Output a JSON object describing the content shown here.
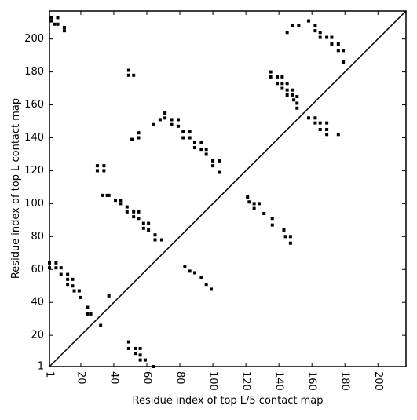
{
  "chart_data": {
    "type": "scatter",
    "xlabel": "Residue index of top L/5 contact map",
    "ylabel": "Residue index of top L contact map",
    "xlim": [
      1,
      217
    ],
    "ylim": [
      1,
      217
    ],
    "xticks": [
      1,
      20,
      40,
      60,
      80,
      100,
      120,
      140,
      160,
      180,
      200
    ],
    "yticks": [
      1,
      20,
      40,
      60,
      80,
      100,
      120,
      140,
      160,
      180,
      200
    ],
    "diagonal": true,
    "series": [
      {
        "color": "#000000",
        "x": [
          2,
          2,
          6,
          6,
          10,
          10,
          4,
          49,
          49,
          52,
          30,
          30,
          34,
          34,
          33,
          36,
          37,
          41,
          44,
          44,
          48,
          48,
          52,
          52,
          55,
          55,
          58,
          58,
          61,
          61,
          65,
          65,
          69,
          55,
          55,
          51,
          64,
          68,
          71,
          71,
          75,
          75,
          79,
          79,
          82,
          82,
          86,
          86,
          89,
          89,
          93,
          93,
          96,
          96,
          100,
          100,
          104,
          104,
          135,
          135,
          139,
          139,
          142,
          142,
          142,
          145,
          145,
          145,
          148,
          148,
          149,
          151,
          151,
          151,
          145,
          148,
          152,
          158,
          162,
          162,
          165,
          165,
          169,
          172,
          172,
          176,
          176,
          179,
          179,
          136,
          136,
          158,
          162,
          162,
          165,
          169,
          169,
          165,
          169,
          176,
          1,
          1,
          5,
          5,
          8,
          8,
          12,
          12,
          12,
          15,
          15,
          16,
          19,
          20,
          24,
          24,
          26,
          32,
          37,
          49,
          49,
          53,
          53,
          56,
          56,
          56,
          59,
          64,
          83,
          86,
          89,
          93,
          96,
          99,
          121,
          122,
          125,
          125,
          128,
          131,
          143,
          144,
          147,
          147
        ],
        "values": [
          213,
          211,
          213,
          209,
          207,
          205,
          209,
          181,
          178,
          178,
          123,
          120,
          123,
          120,
          105,
          105,
          105,
          102,
          102,
          100,
          98,
          95,
          95,
          92,
          95,
          91,
          88,
          85,
          88,
          84,
          81,
          78,
          78,
          140,
          143,
          139,
          148,
          151,
          152,
          155,
          151,
          148,
          151,
          147,
          144,
          140,
          144,
          140,
          137,
          134,
          137,
          133,
          133,
          130,
          126,
          123,
          126,
          119,
          180,
          177,
          177,
          173,
          177,
          173,
          170,
          173,
          169,
          166,
          169,
          166,
          163,
          165,
          161,
          158,
          204,
          208,
          208,
          211,
          208,
          205,
          204,
          201,
          201,
          201,
          197,
          197,
          193,
          193,
          186,
          91,
          87,
          152,
          152,
          149,
          149,
          149,
          145,
          145,
          142,
          142,
          64,
          61,
          64,
          61,
          61,
          57,
          57,
          54,
          51,
          54,
          50,
          47,
          47,
          43,
          37,
          33,
          33,
          26,
          44,
          16,
          12,
          12,
          9,
          12,
          8,
          5,
          5,
          1,
          62,
          59,
          58,
          55,
          51,
          48,
          104,
          101,
          100,
          97,
          100,
          94,
          84,
          80,
          80,
          76
        ]
      }
    ]
  }
}
